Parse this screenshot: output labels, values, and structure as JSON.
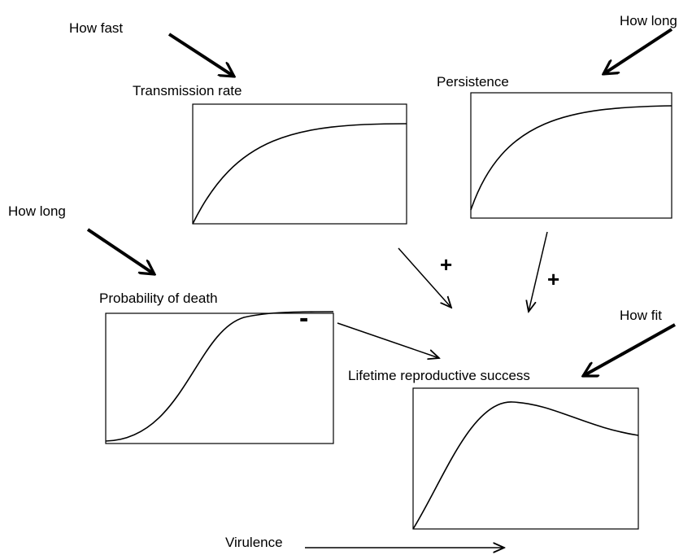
{
  "drivers": {
    "transmission": "How fast",
    "persistence": "How long",
    "death": "How long",
    "fitness": "How fit"
  },
  "panels": {
    "transmission": "Transmission rate",
    "persistence": "Persistence",
    "death": "Probability of death",
    "success": "Lifetime reproductive success"
  },
  "signs": {
    "transmission": "+",
    "persistence": "+",
    "death": "-"
  },
  "axis_label": "Virulence"
}
